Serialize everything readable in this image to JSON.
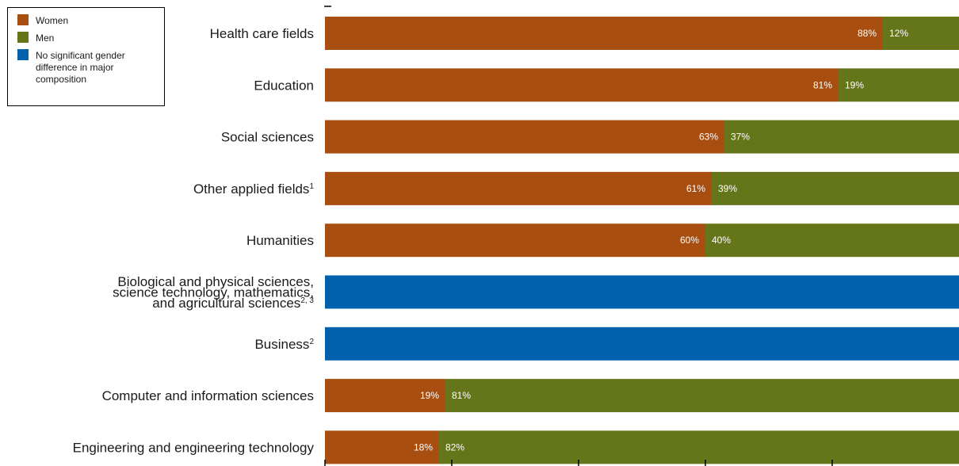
{
  "chart_data": {
    "type": "bar",
    "orientation": "horizontal",
    "stacked": true,
    "legend_position": "top-left",
    "grid": false,
    "xlim": [
      0,
      100
    ],
    "categories": [
      {
        "label": "Health care fields",
        "sup": ""
      },
      {
        "label": "Education",
        "sup": ""
      },
      {
        "label": "Social sciences",
        "sup": ""
      },
      {
        "label": "Other applied fields",
        "sup": "1"
      },
      {
        "label": "Humanities",
        "sup": ""
      },
      {
        "label": "Biological and physical sciences,|science technology, mathematics,|and agricultural sciences",
        "sup": "2, 3"
      },
      {
        "label": "Business",
        "sup": "2"
      },
      {
        "label": "Computer and information sciences",
        "sup": ""
      },
      {
        "label": "Engineering and engineering technology",
        "sup": ""
      }
    ],
    "series": [
      {
        "name": "Women",
        "color": "#a84e10",
        "values": [
          88,
          81,
          63,
          61,
          60,
          null,
          null,
          19,
          18
        ],
        "labels": [
          "88%",
          "81%",
          "63%",
          "61%",
          "60%",
          "",
          "",
          "19%",
          "18%"
        ]
      },
      {
        "name": "Men",
        "color": "#65761a",
        "values": [
          12,
          19,
          37,
          39,
          40,
          null,
          null,
          81,
          82
        ],
        "labels": [
          "12%",
          "19%",
          "37%",
          "39%",
          "40%",
          "",
          "",
          "81%",
          "82%"
        ]
      },
      {
        "name": "No significant gender difference in major composition",
        "color": "#0061ad",
        "values": [
          null,
          null,
          null,
          null,
          null,
          100,
          100,
          null,
          null
        ]
      }
    ],
    "legend": {
      "entries": [
        {
          "lines": [
            "Women"
          ],
          "color": "#a84e10"
        },
        {
          "lines": [
            "Men"
          ],
          "color": "#65761a"
        },
        {
          "lines": [
            "No significant gender",
            "difference in major",
            "composition"
          ],
          "color": "#0061ad"
        }
      ]
    }
  }
}
